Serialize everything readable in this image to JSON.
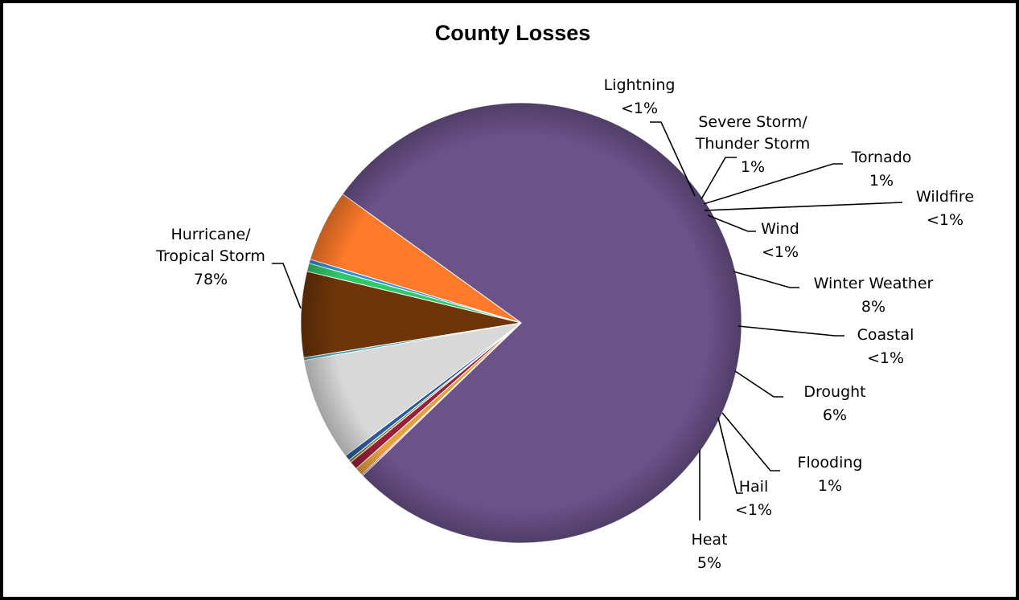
{
  "chart_data": {
    "type": "pie",
    "title": "County Losses",
    "slices": [
      {
        "name": "Hurricane/ Tropical Storm",
        "label_lines": [
          "Hurricane/",
          "Tropical Storm"
        ],
        "pct_label": "78%",
        "value": 77.9,
        "color": "#6b5289"
      },
      {
        "name": "Heat",
        "label_lines": [
          "Heat"
        ],
        "pct_label": "5%",
        "value": 5.3,
        "color": "#ff7a2a"
      },
      {
        "name": "Hail",
        "label_lines": [
          "Hail"
        ],
        "pct_label": "<1%",
        "value": 0.3,
        "color": "#2f8fd8"
      },
      {
        "name": "Flooding",
        "label_lines": [
          "Flooding"
        ],
        "pct_label": "1%",
        "value": 0.6,
        "color": "#2ec868"
      },
      {
        "name": "Drought",
        "label_lines": [
          "Drought"
        ],
        "pct_label": "6%",
        "value": 6.3,
        "color": "#6e3509"
      },
      {
        "name": "Coastal",
        "label_lines": [
          "Coastal"
        ],
        "pct_label": "<1%",
        "value": 0.2,
        "color": "#3a9fb8"
      },
      {
        "name": "Winter Weather",
        "label_lines": [
          "Winter Weather"
        ],
        "pct_label": "8%",
        "value": 7.6,
        "color": "#d8d8d8"
      },
      {
        "name": "Wind",
        "label_lines": [
          "Wind"
        ],
        "pct_label": "<1%",
        "value": 0.4,
        "color": "#2b5aa0"
      },
      {
        "name": "Wildfire",
        "label_lines": [
          "Wildfire"
        ],
        "pct_label": "<1%",
        "value": 0.2,
        "color": "#8a8a3a"
      },
      {
        "name": "Tornado",
        "label_lines": [
          "Tornado"
        ],
        "pct_label": "1%",
        "value": 0.6,
        "color": "#9a1f3a"
      },
      {
        "name": "Severe Storm/ Thunder Storm",
        "label_lines": [
          "Severe Storm/",
          "Thunder Storm"
        ],
        "pct_label": "1%",
        "value": 0.6,
        "color": "#e6a040"
      },
      {
        "name": "Lightning",
        "label_lines": [
          "Lightning"
        ],
        "pct_label": "<1%",
        "value": 0.1,
        "color": "#c0406a"
      }
    ]
  }
}
